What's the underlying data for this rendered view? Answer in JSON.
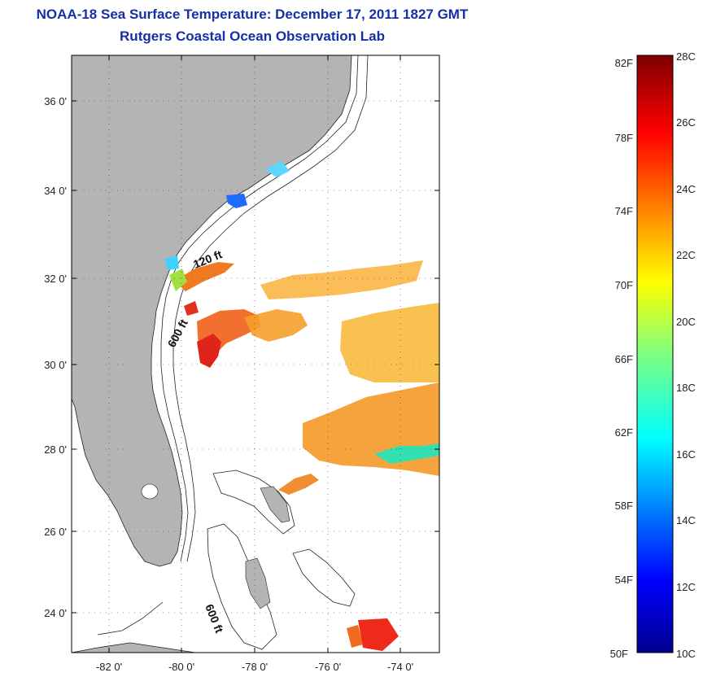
{
  "title": {
    "line1": "NOAA-18 Sea Surface Temperature:  December 17, 2011 1827 GMT",
    "line2": "Rutgers Coastal Ocean Observation Lab"
  },
  "map": {
    "lon_labels": [
      "-82 0'",
      "-80 0'",
      "-78 0'",
      "-76 0'",
      "-74 0'"
    ],
    "lat_labels": [
      "36 0'",
      "34 0'",
      "32 0'",
      "30 0'",
      "28 0'",
      "26 0'",
      "24 0'"
    ],
    "isobath_labels": [
      "120 ft",
      "600 ft",
      "600 ft"
    ],
    "land_color": "#b4b4b4",
    "grid": true
  },
  "colorbar": {
    "fahrenheit_labels": [
      "82F",
      "78F",
      "74F",
      "70F",
      "66F",
      "62F",
      "58F",
      "54F",
      "50F"
    ],
    "celsius_labels": [
      "28C",
      "26C",
      "24C",
      "22C",
      "20C",
      "18C",
      "16C",
      "14C",
      "12C",
      "10C"
    ],
    "colormap": "jet"
  }
}
